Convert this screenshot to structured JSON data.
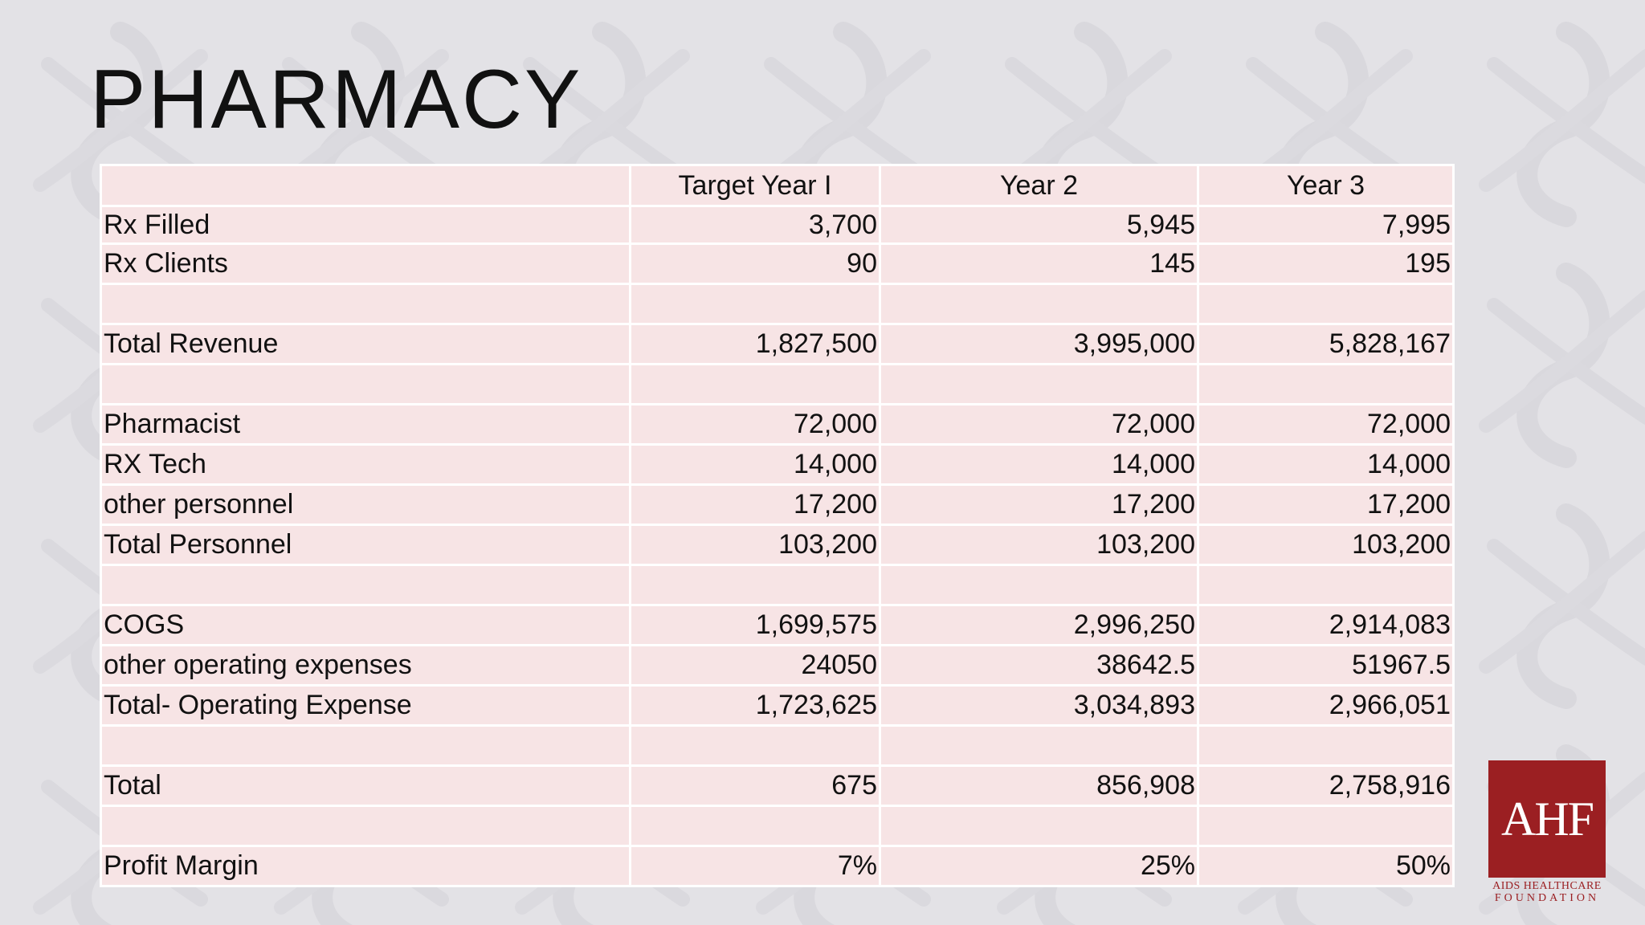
{
  "title": "PHARMACY",
  "table": {
    "headers": [
      "",
      "Target Year I",
      "Year 2",
      "Year 3"
    ],
    "rows": [
      {
        "label": "Rx Filled",
        "values": [
          "3,700",
          "5,945",
          "7,995"
        ]
      },
      {
        "label": "Rx Clients",
        "values": [
          "90",
          "145",
          "195"
        ]
      },
      {
        "label": "",
        "values": [
          "",
          "",
          ""
        ]
      },
      {
        "label": "Total Revenue",
        "values": [
          "1,827,500",
          "3,995,000",
          "5,828,167"
        ]
      },
      {
        "label": "",
        "values": [
          "",
          "",
          ""
        ]
      },
      {
        "label": "Pharmacist",
        "values": [
          "72,000",
          "72,000",
          "72,000"
        ]
      },
      {
        "label": "RX Tech",
        "values": [
          "14,000",
          "14,000",
          "14,000"
        ]
      },
      {
        "label": "other personnel",
        "values": [
          "17,200",
          "17,200",
          "17,200"
        ]
      },
      {
        "label": "Total Personnel",
        "values": [
          "103,200",
          "103,200",
          "103,200"
        ]
      },
      {
        "label": "",
        "values": [
          "",
          "",
          ""
        ]
      },
      {
        "label": "COGS",
        "values": [
          "1,699,575",
          "2,996,250",
          "2,914,083"
        ]
      },
      {
        "label": "other operating expenses",
        "values": [
          "24050",
          "38642.5",
          "51967.5"
        ]
      },
      {
        "label": "Total- Operating Expense",
        "values": [
          "1,723,625",
          "3,034,893",
          "2,966,051"
        ]
      },
      {
        "label": "",
        "values": [
          "",
          "",
          ""
        ]
      },
      {
        "label": "Total",
        "values": [
          "675",
          "856,908",
          "2,758,916"
        ]
      },
      {
        "label": "",
        "values": [
          "",
          "",
          ""
        ]
      },
      {
        "label": "Profit Margin",
        "values": [
          "7%",
          "25%",
          "50%"
        ]
      }
    ]
  },
  "logo": {
    "mark": "AHF",
    "line1": "AIDS HEALTHCARE",
    "line2": "FOUNDATION"
  },
  "colors": {
    "background": "#e3e2e6",
    "cell": "#f7e4e5",
    "brand": "#9b1f22"
  }
}
